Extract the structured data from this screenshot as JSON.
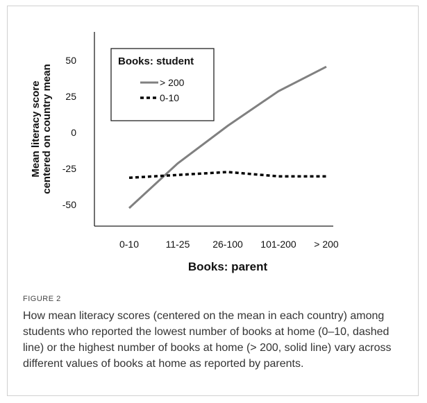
{
  "chart_data": {
    "type": "line",
    "categories": [
      "0-10",
      "11-25",
      "26-100",
      "101-200",
      "> 200"
    ],
    "series": [
      {
        "name": "> 200",
        "values": [
          -50,
          -19,
          7,
          31,
          48
        ],
        "style": "solid",
        "color": "#808080"
      },
      {
        "name": "0-10",
        "values": [
          -29,
          -27,
          -25,
          -28,
          -28
        ],
        "style": "dashed",
        "color": "#000000"
      }
    ],
    "ylabel": [
      "Mean literacy score",
      "centered on country mean"
    ],
    "xlabel": "Books: parent",
    "legend_title": "Books: student",
    "legend_position": "top-left",
    "yticks": [
      50,
      25,
      0,
      -25,
      -50
    ],
    "ylim": [
      -58,
      57
    ],
    "grid": false
  },
  "caption": {
    "label": "FIGURE 2",
    "text": "How mean literacy scores (centered on the mean in each country) among students who reported the lowest number of books at home (0–10, dashed line) or the highest number of books at home (> 200, solid line) vary across different values of books at home as reported by parents."
  }
}
